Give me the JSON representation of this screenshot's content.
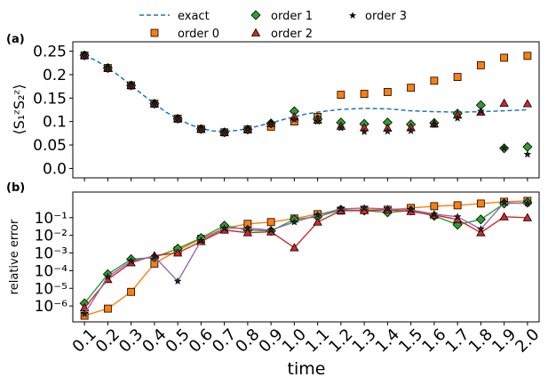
{
  "legend": {
    "entries": [
      {
        "key": "exact",
        "label": "exact"
      },
      {
        "key": "order0",
        "label": "order 0"
      },
      {
        "key": "order1",
        "label": "order 1"
      },
      {
        "key": "order2",
        "label": "order 2"
      },
      {
        "key": "order3",
        "label": "order 3"
      }
    ]
  },
  "colors": {
    "exact": "#1f77b4",
    "order0": "#ff7f0e",
    "order1": "#2ca02c",
    "order2": "#d62728",
    "order3": "#9467bd",
    "marker_edge": "#000000"
  },
  "chart_data": [
    {
      "panel_label": "(a)",
      "type": "scatter",
      "ylabel": "⟨S₁ᶻS₂ᶻ⟩",
      "xlabel": "",
      "xlim": [
        0.05,
        2.05
      ],
      "ylim": [
        -0.02,
        0.27
      ],
      "yticks": [
        0.0,
        0.05,
        0.1,
        0.15,
        0.2,
        0.25
      ],
      "ytick_labels": [
        "0.0",
        "0.05",
        "0.1",
        "0.15",
        "0.2",
        "0.25"
      ],
      "x": [
        0.1,
        0.2,
        0.3,
        0.4,
        0.5,
        0.6,
        0.7,
        0.8,
        0.9,
        1.0,
        1.1,
        1.2,
        1.3,
        1.4,
        1.5,
        1.6,
        1.7,
        1.8,
        1.9,
        2.0
      ],
      "series": [
        {
          "name": "exact",
          "key": "exact",
          "style": "dashed-line",
          "x": [
            0.1,
            0.15,
            0.2,
            0.25,
            0.3,
            0.35,
            0.4,
            0.45,
            0.5,
            0.55,
            0.6,
            0.65,
            0.7,
            0.75,
            0.8,
            0.85,
            0.9,
            0.95,
            1.0,
            1.05,
            1.1,
            1.2,
            1.3,
            1.4,
            1.5,
            1.6,
            1.7,
            1.8,
            1.9,
            2.0
          ],
          "values": [
            0.241,
            0.23,
            0.214,
            0.197,
            0.177,
            0.157,
            0.138,
            0.12,
            0.106,
            0.094,
            0.085,
            0.08,
            0.079,
            0.081,
            0.085,
            0.091,
            0.097,
            0.104,
            0.11,
            0.116,
            0.12,
            0.126,
            0.128,
            0.127,
            0.123,
            0.121,
            0.12,
            0.121,
            0.123,
            0.125
          ]
        },
        {
          "name": "order 0",
          "key": "order0",
          "marker": "square",
          "values": [
            0.241,
            0.214,
            0.177,
            0.138,
            0.106,
            0.084,
            0.077,
            0.083,
            0.089,
            0.1,
            0.11,
            0.157,
            0.159,
            0.163,
            0.172,
            0.187,
            0.195,
            0.22,
            0.236,
            0.24
          ]
        },
        {
          "name": "order 1",
          "key": "order1",
          "marker": "diamond",
          "values": [
            0.241,
            0.214,
            0.177,
            0.138,
            0.106,
            0.084,
            0.077,
            0.083,
            0.096,
            0.122,
            0.105,
            0.098,
            0.095,
            0.098,
            0.094,
            0.097,
            0.117,
            0.135,
            0.043,
            0.046
          ]
        },
        {
          "name": "order 2",
          "key": "order2",
          "marker": "triangle",
          "values": [
            0.241,
            0.214,
            0.177,
            0.138,
            0.106,
            0.084,
            0.077,
            0.083,
            0.096,
            0.11,
            0.103,
            0.09,
            0.087,
            0.086,
            0.087,
            0.095,
            0.114,
            0.12,
            0.139,
            0.138
          ]
        },
        {
          "name": "order 3",
          "key": "order3",
          "marker": "star",
          "values": [
            0.241,
            0.214,
            0.177,
            0.138,
            0.106,
            0.084,
            0.077,
            0.083,
            0.096,
            0.104,
            0.1,
            0.086,
            0.078,
            0.079,
            0.08,
            0.093,
            0.107,
            0.122,
            0.043,
            0.03
          ]
        }
      ]
    },
    {
      "panel_label": "(b)",
      "type": "line",
      "yscale": "log",
      "ylabel": "relative error",
      "xlabel": "time",
      "xlim": [
        0.05,
        2.05
      ],
      "ylim_log10": [
        -6.9,
        0.45
      ],
      "yticks_log10": [
        -6,
        -5,
        -4,
        -3,
        -2,
        -1
      ],
      "ytick_labels": [
        "10⁻⁶",
        "10⁻⁵",
        "10⁻⁴",
        "10⁻³",
        "10⁻²",
        "10⁻¹"
      ],
      "x": [
        0.1,
        0.2,
        0.3,
        0.4,
        0.5,
        0.6,
        0.7,
        0.8,
        0.9,
        1.0,
        1.1,
        1.2,
        1.3,
        1.4,
        1.5,
        1.6,
        1.7,
        1.8,
        1.9,
        2.0
      ],
      "xtick_labels": [
        "0.1",
        "0.2",
        "0.3",
        "0.4",
        "0.5",
        "0.6",
        "0.7",
        "0.8",
        "0.9",
        "1.0",
        "1.1",
        "1.2",
        "1.3",
        "1.4",
        "1.5",
        "1.6",
        "1.7",
        "1.8",
        "1.9",
        "2.0"
      ],
      "series": [
        {
          "name": "order 0",
          "key": "order0",
          "marker": "square",
          "log10_values": [
            -6.55,
            -6.15,
            -5.2,
            -3.6,
            -2.85,
            -2.2,
            -1.6,
            -1.35,
            -1.25,
            -1.05,
            -0.8,
            -0.6,
            -0.55,
            -0.55,
            -0.45,
            -0.35,
            -0.3,
            -0.2,
            -0.1,
            -0.05
          ]
        },
        {
          "name": "order 1",
          "key": "order1",
          "marker": "diamond",
          "log10_values": [
            -5.85,
            -4.2,
            -3.35,
            -3.25,
            -2.75,
            -2.15,
            -1.45,
            -1.7,
            -1.75,
            -1.1,
            -0.95,
            -0.55,
            -0.6,
            -0.7,
            -0.6,
            -0.9,
            -1.4,
            -1.1,
            -0.2,
            -0.15
          ]
        },
        {
          "name": "order 2",
          "key": "order2",
          "marker": "triangle",
          "log10_values": [
            -6.1,
            -4.5,
            -3.55,
            -3.15,
            -3.0,
            -2.35,
            -1.7,
            -1.85,
            -1.8,
            -2.7,
            -1.25,
            -0.6,
            -0.6,
            -0.55,
            -0.65,
            -0.85,
            -1.1,
            -1.85,
            -0.95,
            -1.0
          ]
        },
        {
          "name": "order 3",
          "key": "order3",
          "marker": "star",
          "log10_values": [
            -6.45,
            -4.35,
            -3.45,
            -3.2,
            -4.6,
            -2.3,
            -1.6,
            -1.6,
            -1.7,
            -1.25,
            -0.85,
            -0.5,
            -0.45,
            -0.5,
            -0.55,
            -0.8,
            -0.95,
            -1.65,
            -0.15,
            -0.2
          ]
        }
      ]
    }
  ]
}
